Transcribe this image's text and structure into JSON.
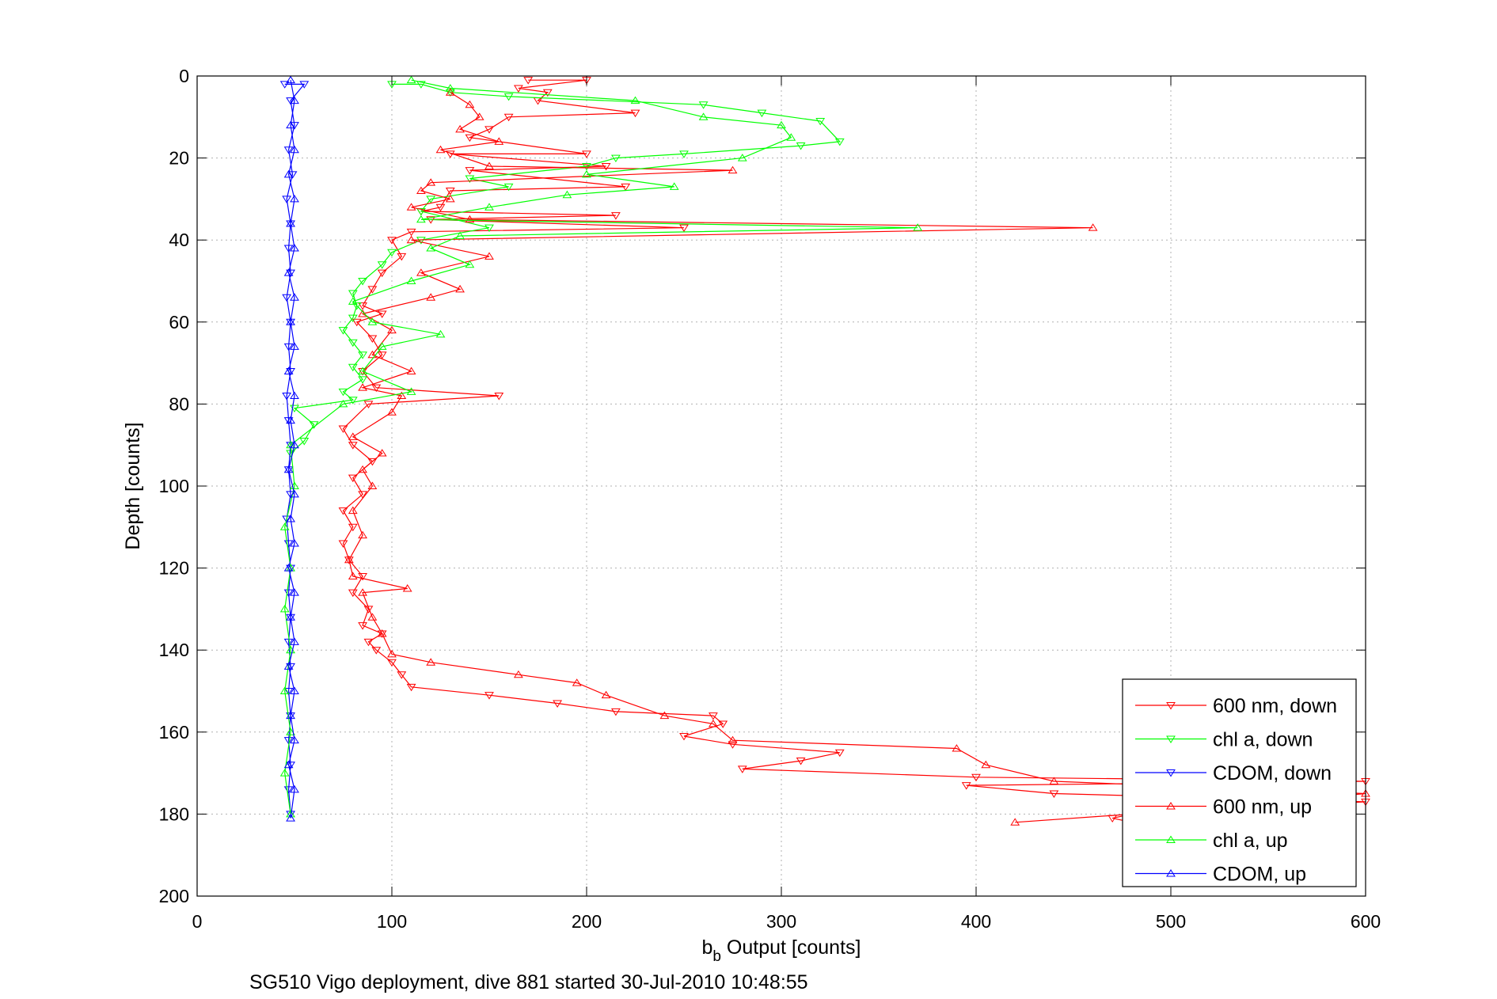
{
  "chart_data": {
    "type": "line",
    "title": "",
    "xlabel_main": "b",
    "xlabel_sub": "b",
    "xlabel_rest": " Output [counts]",
    "ylabel": "Depth [counts]",
    "caption": "SG510 Vigo deployment, dive 881 started 30-Jul-2010 10:48:55",
    "xlim": [
      0,
      600
    ],
    "ylim": [
      0,
      200
    ],
    "y_reversed": true,
    "grid": true,
    "legend_position": "bottom-right",
    "x_ticks": [
      "0",
      "100",
      "200",
      "300",
      "400",
      "500",
      "600"
    ],
    "y_ticks": [
      "0",
      "20",
      "40",
      "60",
      "80",
      "100",
      "120",
      "140",
      "160",
      "180",
      "200"
    ],
    "series": [
      {
        "name": "600 nm, down",
        "color": "#ff0000",
        "marker": "triangle-down",
        "points": [
          [
            170,
            1
          ],
          [
            200,
            1
          ],
          [
            165,
            3
          ],
          [
            180,
            4
          ],
          [
            175,
            6
          ],
          [
            225,
            9
          ],
          [
            160,
            10
          ],
          [
            150,
            13
          ],
          [
            140,
            15
          ],
          [
            200,
            19
          ],
          [
            130,
            19
          ],
          [
            210,
            22
          ],
          [
            140,
            23
          ],
          [
            220,
            27
          ],
          [
            130,
            28
          ],
          [
            125,
            32
          ],
          [
            115,
            33
          ],
          [
            215,
            34
          ],
          [
            120,
            35
          ],
          [
            250,
            37
          ],
          [
            110,
            38
          ],
          [
            100,
            40
          ],
          [
            105,
            44
          ],
          [
            95,
            48
          ],
          [
            90,
            52
          ],
          [
            85,
            56
          ],
          [
            95,
            58
          ],
          [
            82,
            60
          ],
          [
            90,
            64
          ],
          [
            95,
            68
          ],
          [
            85,
            72
          ],
          [
            92,
            76
          ],
          [
            155,
            78
          ],
          [
            88,
            80
          ],
          [
            75,
            86
          ],
          [
            80,
            90
          ],
          [
            90,
            94
          ],
          [
            80,
            98
          ],
          [
            85,
            102
          ],
          [
            75,
            106
          ],
          [
            80,
            110
          ],
          [
            75,
            114
          ],
          [
            78,
            118
          ],
          [
            85,
            122
          ],
          [
            80,
            126
          ],
          [
            88,
            130
          ],
          [
            85,
            134
          ],
          [
            95,
            136
          ],
          [
            88,
            138
          ],
          [
            92,
            140
          ],
          [
            100,
            143
          ],
          [
            105,
            146
          ],
          [
            110,
            149
          ],
          [
            150,
            151
          ],
          [
            185,
            153
          ],
          [
            215,
            155
          ],
          [
            265,
            156
          ],
          [
            270,
            158
          ],
          [
            250,
            161
          ],
          [
            275,
            163
          ],
          [
            330,
            165
          ],
          [
            310,
            167
          ],
          [
            280,
            169
          ],
          [
            400,
            171
          ],
          [
            600,
            172
          ],
          [
            395,
            173
          ],
          [
            440,
            175
          ],
          [
            600,
            177
          ],
          [
            480,
            180
          ],
          [
            470,
            181
          ],
          [
            480,
            182
          ]
        ]
      },
      {
        "name": "chl a, down",
        "color": "#00ff00",
        "marker": "triangle-down",
        "points": [
          [
            100,
            2
          ],
          [
            115,
            2
          ],
          [
            130,
            4
          ],
          [
            160,
            5
          ],
          [
            260,
            7
          ],
          [
            290,
            9
          ],
          [
            320,
            11
          ],
          [
            330,
            16
          ],
          [
            310,
            17
          ],
          [
            250,
            19
          ],
          [
            215,
            20
          ],
          [
            200,
            22
          ],
          [
            140,
            25
          ],
          [
            160,
            27
          ],
          [
            120,
            30
          ],
          [
            115,
            33
          ],
          [
            150,
            37
          ],
          [
            115,
            40
          ],
          [
            100,
            43
          ],
          [
            95,
            46
          ],
          [
            85,
            50
          ],
          [
            80,
            53
          ],
          [
            82,
            56
          ],
          [
            80,
            59
          ],
          [
            75,
            62
          ],
          [
            80,
            65
          ],
          [
            85,
            68
          ],
          [
            80,
            71
          ],
          [
            85,
            74
          ],
          [
            75,
            77
          ],
          [
            80,
            79
          ],
          [
            50,
            81
          ],
          [
            60,
            85
          ],
          [
            55,
            89
          ],
          [
            48,
            92
          ]
        ]
      },
      {
        "name": "CDOM, down",
        "color": "#0000ff",
        "marker": "triangle-down",
        "points": [
          [
            45,
            2
          ],
          [
            55,
            2
          ],
          [
            48,
            6
          ],
          [
            50,
            12
          ],
          [
            47,
            18
          ],
          [
            49,
            24
          ],
          [
            46,
            30
          ],
          [
            48,
            36
          ],
          [
            47,
            42
          ],
          [
            48,
            48
          ],
          [
            46,
            54
          ],
          [
            48,
            60
          ],
          [
            47,
            66
          ],
          [
            48,
            72
          ],
          [
            46,
            78
          ],
          [
            47,
            84
          ],
          [
            48,
            90
          ],
          [
            47,
            96
          ],
          [
            48,
            102
          ],
          [
            46,
            108
          ],
          [
            47,
            114
          ],
          [
            48,
            120
          ],
          [
            47,
            126
          ],
          [
            48,
            132
          ],
          [
            47,
            138
          ],
          [
            48,
            144
          ],
          [
            47,
            150
          ],
          [
            48,
            156
          ],
          [
            47,
            162
          ],
          [
            48,
            168
          ],
          [
            47,
            174
          ],
          [
            48,
            180
          ]
        ]
      },
      {
        "name": "600 nm, up",
        "color": "#ff0000",
        "marker": "triangle-up",
        "points": [
          [
            420,
            182
          ],
          [
            480,
            180
          ],
          [
            600,
            175
          ],
          [
            440,
            172
          ],
          [
            405,
            168
          ],
          [
            390,
            164
          ],
          [
            275,
            162
          ],
          [
            265,
            158
          ],
          [
            240,
            156
          ],
          [
            210,
            151
          ],
          [
            195,
            148
          ],
          [
            165,
            146
          ],
          [
            120,
            143
          ],
          [
            100,
            141
          ],
          [
            95,
            136
          ],
          [
            90,
            132
          ],
          [
            85,
            126
          ],
          [
            108,
            125
          ],
          [
            80,
            122
          ],
          [
            78,
            118
          ],
          [
            85,
            112
          ],
          [
            80,
            106
          ],
          [
            90,
            100
          ],
          [
            85,
            96
          ],
          [
            95,
            92
          ],
          [
            80,
            88
          ],
          [
            100,
            82
          ],
          [
            105,
            78
          ],
          [
            85,
            76
          ],
          [
            110,
            72
          ],
          [
            90,
            68
          ],
          [
            100,
            62
          ],
          [
            85,
            58
          ],
          [
            120,
            54
          ],
          [
            135,
            52
          ],
          [
            115,
            48
          ],
          [
            150,
            44
          ],
          [
            110,
            40
          ],
          [
            460,
            37
          ],
          [
            140,
            35
          ],
          [
            110,
            32
          ],
          [
            130,
            30
          ],
          [
            115,
            28
          ],
          [
            120,
            26
          ],
          [
            275,
            23
          ],
          [
            150,
            22
          ],
          [
            125,
            18
          ],
          [
            155,
            16
          ],
          [
            135,
            13
          ],
          [
            145,
            10
          ],
          [
            140,
            7
          ],
          [
            130,
            4
          ]
        ]
      },
      {
        "name": "chl a, up",
        "color": "#00ff00",
        "marker": "triangle-up",
        "points": [
          [
            48,
            180
          ],
          [
            45,
            170
          ],
          [
            48,
            160
          ],
          [
            45,
            150
          ],
          [
            48,
            140
          ],
          [
            45,
            130
          ],
          [
            48,
            120
          ],
          [
            45,
            110
          ],
          [
            50,
            100
          ],
          [
            48,
            90
          ],
          [
            75,
            80
          ],
          [
            110,
            77
          ],
          [
            85,
            72
          ],
          [
            95,
            66
          ],
          [
            125,
            63
          ],
          [
            90,
            60
          ],
          [
            80,
            55
          ],
          [
            110,
            50
          ],
          [
            140,
            46
          ],
          [
            120,
            42
          ],
          [
            135,
            39
          ],
          [
            370,
            37
          ],
          [
            115,
            35
          ],
          [
            150,
            32
          ],
          [
            190,
            29
          ],
          [
            245,
            27
          ],
          [
            200,
            24
          ],
          [
            280,
            20
          ],
          [
            305,
            15
          ],
          [
            300,
            12
          ],
          [
            260,
            10
          ],
          [
            225,
            6
          ],
          [
            130,
            3
          ],
          [
            110,
            1
          ]
        ]
      },
      {
        "name": "CDOM, up",
        "color": "#0000ff",
        "marker": "triangle-up",
        "points": [
          [
            48,
            181
          ],
          [
            50,
            174
          ],
          [
            47,
            168
          ],
          [
            50,
            162
          ],
          [
            48,
            156
          ],
          [
            50,
            150
          ],
          [
            47,
            144
          ],
          [
            50,
            138
          ],
          [
            48,
            132
          ],
          [
            50,
            126
          ],
          [
            47,
            120
          ],
          [
            50,
            114
          ],
          [
            48,
            108
          ],
          [
            50,
            102
          ],
          [
            47,
            96
          ],
          [
            50,
            90
          ],
          [
            48,
            84
          ],
          [
            50,
            78
          ],
          [
            47,
            72
          ],
          [
            50,
            66
          ],
          [
            48,
            60
          ],
          [
            50,
            54
          ],
          [
            47,
            48
          ],
          [
            50,
            42
          ],
          [
            48,
            36
          ],
          [
            50,
            30
          ],
          [
            47,
            24
          ],
          [
            50,
            18
          ],
          [
            48,
            12
          ],
          [
            50,
            6
          ],
          [
            48,
            1
          ]
        ]
      }
    ]
  }
}
